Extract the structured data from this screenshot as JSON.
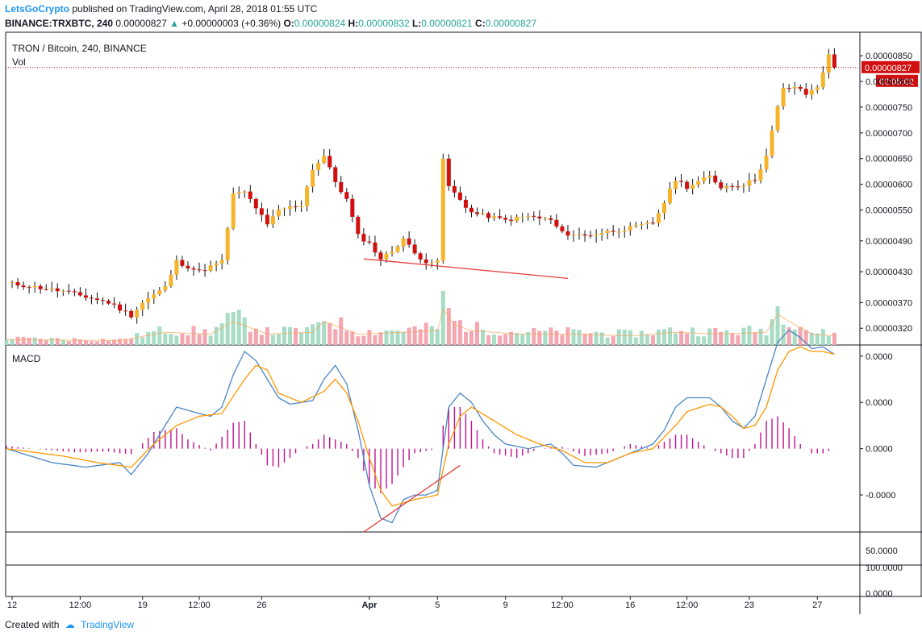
{
  "header": {
    "author": "LetsGoCrypto",
    "published_text": "published on TradingView.com, April 28, 2018 01:55 UTC",
    "symbol_line": "BINANCE:TRXBTC, 240",
    "last_price": "0.00000827",
    "change": "+0.00000003 (+0.36%)",
    "o_label": "O:",
    "o_value": "0.00000824",
    "h_label": "H:",
    "h_value": "0.00000832",
    "l_label": "L:",
    "l_value": "0.00000821",
    "c_label": "C:",
    "c_value": "0.00000827"
  },
  "footer": {
    "created_with": "Created with",
    "brand": "TradingView"
  },
  "colors": {
    "bull": "#f6b42b",
    "bear": "#d10f0f",
    "macd": "#4a86c8",
    "signal": "#ff9800",
    "hist": "#c2118f",
    "trend": "#e53935",
    "vol_up": "#a8dcc4",
    "vol_down": "#f4a7b0"
  },
  "chart_data": [
    {
      "type": "candlestick",
      "title": "TRON / Bitcoin, 240, BINANCE",
      "volume_label": "Vol",
      "y_ticks": [
        "0.00000850",
        "0.00000800",
        "0.00000750",
        "0.00000700",
        "0.00000650",
        "0.00000600",
        "0.00000550",
        "0.00000490",
        "0.00000430",
        "0.00000370",
        "0.00000320"
      ],
      "y_tick_values": [
        8.5,
        8.0,
        7.5,
        7.0,
        6.5,
        6.0,
        5.5,
        4.9,
        4.3,
        3.7,
        3.2
      ],
      "last_price_label": "0.00000827",
      "last_price_value": 8.27,
      "countdown_label": "02:05:02",
      "ylim": [
        3.0,
        8.8
      ],
      "x_ticks": [
        {
          "label": "12",
          "i": 1,
          "bold": false
        },
        {
          "label": "12:00",
          "i": 13,
          "bold": false
        },
        {
          "label": "19",
          "i": 24,
          "bold": false
        },
        {
          "label": "12:00",
          "i": 34,
          "bold": false
        },
        {
          "label": "26",
          "i": 45,
          "bold": false
        },
        {
          "label": "Apr",
          "i": 64,
          "bold": true
        },
        {
          "label": "5",
          "i": 76,
          "bold": false
        },
        {
          "label": "9",
          "i": 88,
          "bold": false
        },
        {
          "label": "12:00",
          "i": 98,
          "bold": false
        },
        {
          "label": "16",
          "i": 110,
          "bold": false
        },
        {
          "label": "12:00",
          "i": 120,
          "bold": false
        },
        {
          "label": "23",
          "i": 131,
          "bold": false
        },
        {
          "label": "27",
          "i": 143,
          "bold": false
        }
      ],
      "close_keypoints": [
        [
          0,
          4.08
        ],
        [
          10,
          3.92
        ],
        [
          18,
          3.7
        ],
        [
          22,
          3.45
        ],
        [
          24,
          3.7
        ],
        [
          28,
          4.0
        ],
        [
          30,
          4.5
        ],
        [
          34,
          4.3
        ],
        [
          38,
          4.5
        ],
        [
          40,
          5.8
        ],
        [
          42,
          5.85
        ],
        [
          44,
          5.55
        ],
        [
          46,
          5.2
        ],
        [
          48,
          5.5
        ],
        [
          52,
          5.6
        ],
        [
          54,
          6.3
        ],
        [
          56,
          6.55
        ],
        [
          58,
          6.05
        ],
        [
          60,
          5.7
        ],
        [
          62,
          5.0
        ],
        [
          64,
          4.85
        ],
        [
          66,
          4.55
        ],
        [
          68,
          4.7
        ],
        [
          70,
          4.95
        ],
        [
          72,
          4.65
        ],
        [
          74,
          4.5
        ],
        [
          76,
          4.48
        ],
        [
          77,
          6.5
        ],
        [
          78,
          5.95
        ],
        [
          80,
          5.7
        ],
        [
          82,
          5.45
        ],
        [
          86,
          5.35
        ],
        [
          88,
          5.3
        ],
        [
          92,
          5.38
        ],
        [
          96,
          5.3
        ],
        [
          98,
          5.05
        ],
        [
          102,
          5.0
        ],
        [
          106,
          5.08
        ],
        [
          110,
          5.15
        ],
        [
          114,
          5.25
        ],
        [
          116,
          5.65
        ],
        [
          118,
          6.1
        ],
        [
          120,
          5.95
        ],
        [
          124,
          6.15
        ],
        [
          126,
          5.95
        ],
        [
          130,
          6.0
        ],
        [
          132,
          6.1
        ],
        [
          134,
          6.55
        ],
        [
          136,
          7.5
        ],
        [
          137,
          7.85
        ],
        [
          139,
          7.9
        ],
        [
          141,
          7.75
        ],
        [
          143,
          7.9
        ],
        [
          145,
          8.5
        ],
        [
          146,
          8.27
        ]
      ],
      "volume_keypoints": [
        [
          0,
          0.15
        ],
        [
          20,
          0.12
        ],
        [
          28,
          0.35
        ],
        [
          36,
          0.3
        ],
        [
          40,
          0.65
        ],
        [
          46,
          0.3
        ],
        [
          54,
          0.35
        ],
        [
          56,
          0.65
        ],
        [
          62,
          0.3
        ],
        [
          70,
          0.35
        ],
        [
          76,
          0.4
        ],
        [
          77,
          1.0
        ],
        [
          79,
          0.55
        ],
        [
          82,
          0.4
        ],
        [
          90,
          0.3
        ],
        [
          100,
          0.3
        ],
        [
          110,
          0.25
        ],
        [
          118,
          0.35
        ],
        [
          126,
          0.3
        ],
        [
          134,
          0.35
        ],
        [
          136,
          0.85
        ],
        [
          138,
          0.65
        ],
        [
          142,
          0.3
        ],
        [
          146,
          0.25
        ]
      ],
      "trendline": [
        [
          63,
          4.55
        ],
        [
          99,
          4.17
        ]
      ]
    },
    {
      "type": "line",
      "title": "MACD",
      "y_ticks": [
        "0.0000",
        "0.0000",
        "0.0000",
        "-0.0000"
      ],
      "y_tick_values": [
        1.0,
        0.5,
        0.0,
        -0.5
      ],
      "ylim": [
        -0.9,
        1.12
      ],
      "series": [
        {
          "role": "macd",
          "keypoints": [
            [
              0,
              0.0
            ],
            [
              8,
              -0.15
            ],
            [
              14,
              -0.2
            ],
            [
              20,
              -0.15
            ],
            [
              22,
              -0.28
            ],
            [
              25,
              -0.05
            ],
            [
              28,
              0.25
            ],
            [
              30,
              0.45
            ],
            [
              34,
              0.38
            ],
            [
              36,
              0.35
            ],
            [
              38,
              0.45
            ],
            [
              40,
              0.8
            ],
            [
              42,
              1.05
            ],
            [
              44,
              0.95
            ],
            [
              46,
              0.75
            ],
            [
              48,
              0.55
            ],
            [
              50,
              0.48
            ],
            [
              54,
              0.52
            ],
            [
              56,
              0.75
            ],
            [
              58,
              0.9
            ],
            [
              60,
              0.7
            ],
            [
              62,
              0.2
            ],
            [
              64,
              -0.4
            ],
            [
              66,
              -0.75
            ],
            [
              68,
              -0.8
            ],
            [
              70,
              -0.55
            ],
            [
              72,
              -0.5
            ],
            [
              74,
              -0.5
            ],
            [
              76,
              -0.45
            ],
            [
              77,
              0.0
            ],
            [
              78,
              0.45
            ],
            [
              80,
              0.6
            ],
            [
              82,
              0.5
            ],
            [
              84,
              0.3
            ],
            [
              86,
              0.15
            ],
            [
              88,
              0.05
            ],
            [
              92,
              0.0
            ],
            [
              96,
              0.05
            ],
            [
              98,
              -0.05
            ],
            [
              100,
              -0.18
            ],
            [
              104,
              -0.2
            ],
            [
              108,
              -0.1
            ],
            [
              112,
              0.0
            ],
            [
              114,
              0.05
            ],
            [
              116,
              0.2
            ],
            [
              118,
              0.45
            ],
            [
              120,
              0.55
            ],
            [
              124,
              0.55
            ],
            [
              126,
              0.45
            ],
            [
              128,
              0.3
            ],
            [
              130,
              0.22
            ],
            [
              132,
              0.35
            ],
            [
              134,
              0.75
            ],
            [
              136,
              1.15
            ],
            [
              138,
              1.28
            ],
            [
              140,
              1.2
            ],
            [
              142,
              1.08
            ],
            [
              144,
              1.1
            ],
            [
              146,
              1.02
            ]
          ]
        },
        {
          "role": "signal",
          "keypoints": [
            [
              0,
              0.0
            ],
            [
              10,
              -0.08
            ],
            [
              16,
              -0.15
            ],
            [
              22,
              -0.2
            ],
            [
              26,
              0.05
            ],
            [
              30,
              0.25
            ],
            [
              34,
              0.35
            ],
            [
              38,
              0.38
            ],
            [
              42,
              0.75
            ],
            [
              44,
              0.9
            ],
            [
              46,
              0.85
            ],
            [
              48,
              0.6
            ],
            [
              52,
              0.5
            ],
            [
              56,
              0.62
            ],
            [
              58,
              0.75
            ],
            [
              60,
              0.6
            ],
            [
              62,
              0.3
            ],
            [
              64,
              -0.1
            ],
            [
              66,
              -0.45
            ],
            [
              68,
              -0.62
            ],
            [
              72,
              -0.55
            ],
            [
              76,
              -0.5
            ],
            [
              78,
              0.05
            ],
            [
              80,
              0.35
            ],
            [
              82,
              0.45
            ],
            [
              86,
              0.3
            ],
            [
              90,
              0.15
            ],
            [
              94,
              0.05
            ],
            [
              98,
              -0.02
            ],
            [
              102,
              -0.15
            ],
            [
              106,
              -0.15
            ],
            [
              110,
              -0.05
            ],
            [
              114,
              0.0
            ],
            [
              118,
              0.25
            ],
            [
              120,
              0.4
            ],
            [
              124,
              0.48
            ],
            [
              126,
              0.45
            ],
            [
              128,
              0.35
            ],
            [
              130,
              0.22
            ],
            [
              132,
              0.25
            ],
            [
              134,
              0.45
            ],
            [
              136,
              0.85
            ],
            [
              138,
              1.05
            ],
            [
              140,
              1.1
            ],
            [
              142,
              1.05
            ],
            [
              144,
              1.05
            ],
            [
              146,
              1.02
            ]
          ]
        }
      ],
      "histogram_keypoints": [
        [
          0,
          0.03
        ],
        [
          12,
          -0.04
        ],
        [
          18,
          -0.03
        ],
        [
          20,
          -0.05
        ],
        [
          22,
          -0.06
        ],
        [
          26,
          0.18
        ],
        [
          30,
          0.22
        ],
        [
          32,
          0.1
        ],
        [
          36,
          -0.02
        ],
        [
          40,
          0.28
        ],
        [
          42,
          0.3
        ],
        [
          44,
          0.05
        ],
        [
          46,
          -0.18
        ],
        [
          48,
          -0.2
        ],
        [
          52,
          0.0
        ],
        [
          54,
          0.05
        ],
        [
          56,
          0.15
        ],
        [
          58,
          0.1
        ],
        [
          60,
          0.05
        ],
        [
          62,
          -0.1
        ],
        [
          64,
          -0.38
        ],
        [
          66,
          -0.48
        ],
        [
          68,
          -0.38
        ],
        [
          70,
          -0.2
        ],
        [
          72,
          -0.05
        ],
        [
          76,
          0.0
        ],
        [
          77,
          0.25
        ],
        [
          78,
          0.45
        ],
        [
          80,
          0.45
        ],
        [
          82,
          0.3
        ],
        [
          84,
          0.1
        ],
        [
          86,
          -0.05
        ],
        [
          90,
          -0.1
        ],
        [
          94,
          0.0
        ],
        [
          98,
          0.02
        ],
        [
          102,
          -0.08
        ],
        [
          106,
          -0.05
        ],
        [
          110,
          0.05
        ],
        [
          114,
          0.0
        ],
        [
          118,
          0.15
        ],
        [
          120,
          0.15
        ],
        [
          124,
          0.0
        ],
        [
          126,
          -0.05
        ],
        [
          128,
          -0.1
        ],
        [
          130,
          -0.1
        ],
        [
          132,
          0.05
        ],
        [
          134,
          0.3
        ],
        [
          136,
          0.35
        ],
        [
          138,
          0.22
        ],
        [
          140,
          0.05
        ],
        [
          142,
          -0.05
        ],
        [
          144,
          -0.05
        ],
        [
          146,
          0.0
        ]
      ],
      "trendline": [
        [
          63,
          -0.9
        ],
        [
          80,
          -0.18
        ]
      ]
    },
    {
      "type": "line",
      "title": "",
      "y_ticks": [
        "50.0000"
      ]
    },
    {
      "type": "line",
      "title": "",
      "y_ticks": [
        "100.0000",
        "0.0000"
      ]
    }
  ]
}
